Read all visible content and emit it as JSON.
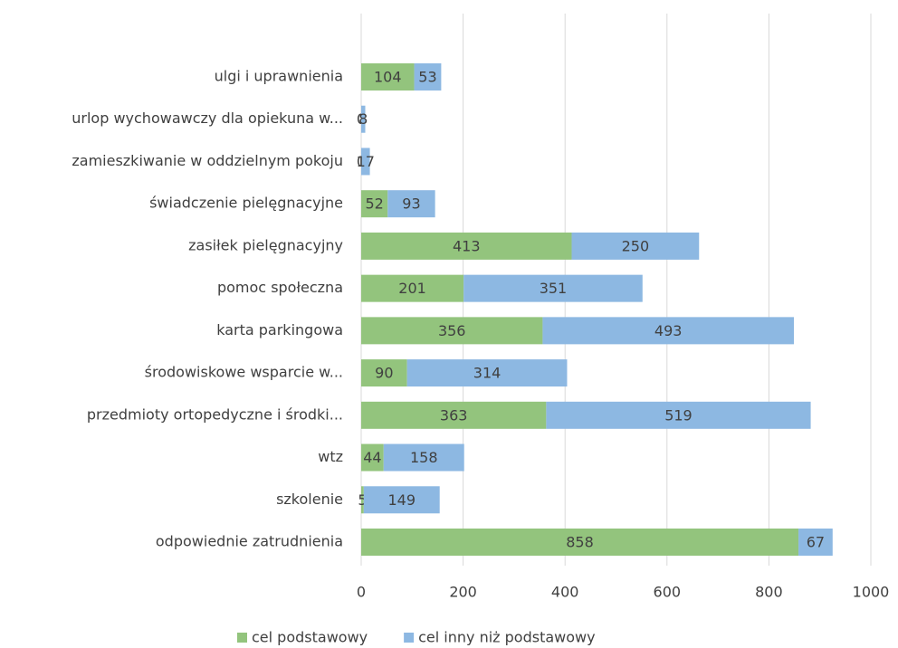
{
  "chart_data": {
    "type": "stacked_barh",
    "categories": [
      "ulgi i uprawnienia",
      "urlop wychowawczy dla opiekuna w...",
      "zamieszkiwanie w oddzielnym pokoju",
      "świadczenie pielęgnacyjne",
      "zasiłek pielęgnacyjny",
      "pomoc społeczna",
      "karta parkingowa",
      "środowiskowe wsparcie w...",
      "przedmioty ortopedyczne i środki...",
      "wtz",
      "szkolenie",
      "odpowiednie zatrudnienia"
    ],
    "series": [
      {
        "name": "cel podstawowy",
        "color": "#93c47d",
        "values": [
          104,
          0,
          0,
          52,
          413,
          201,
          356,
          90,
          363,
          44,
          5,
          858
        ]
      },
      {
        "name": "cel inny niż podstawowy",
        "color": "#8db8e2",
        "values": [
          53,
          8,
          17,
          93,
          250,
          351,
          493,
          314,
          519,
          158,
          149,
          67
        ]
      }
    ],
    "xlim": [
      0,
      1000
    ],
    "xticks": [
      0,
      200,
      400,
      600,
      800,
      1000
    ],
    "grid": true,
    "legend": "bottom"
  }
}
